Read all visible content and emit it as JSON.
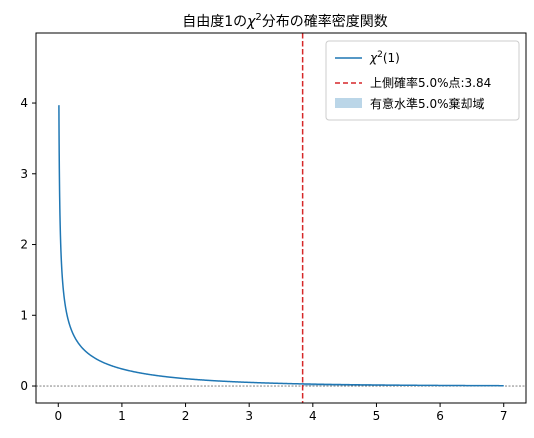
{
  "chart_data": {
    "type": "line",
    "title_prefix": "自由度1の",
    "title_symbol": "χ",
    "title_exponent": "2",
    "title_suffix": "分布の確率密度関数",
    "xlim": [
      -0.35,
      7.35
    ],
    "ylim": [
      -0.24,
      4.99
    ],
    "x_ticks": [
      "0",
      "1",
      "2",
      "3",
      "4",
      "5",
      "6",
      "7"
    ],
    "y_ticks": [
      "0",
      "1",
      "2",
      "3",
      "4"
    ],
    "degrees_of_freedom": 1,
    "x_range": [
      0.01,
      7.0
    ],
    "critical_value": 3.84,
    "significance_level": 0.05,
    "grid": false,
    "legend_position": "top-right",
    "series": [
      {
        "name": "χ²(1)",
        "legend_symbol": "χ",
        "legend_exponent": "2",
        "legend_suffix": "(1)",
        "color": "#1f77b4",
        "style": "solid"
      },
      {
        "name": "上側確率5.0%点:3.84",
        "color": "#d62728",
        "style": "dashed"
      },
      {
        "name": "有意水準5.0%棄却域",
        "color": "#1f77b4",
        "style": "fill"
      }
    ],
    "zero_line": {
      "y": 0,
      "color": "#000000",
      "style": "dashed"
    }
  }
}
